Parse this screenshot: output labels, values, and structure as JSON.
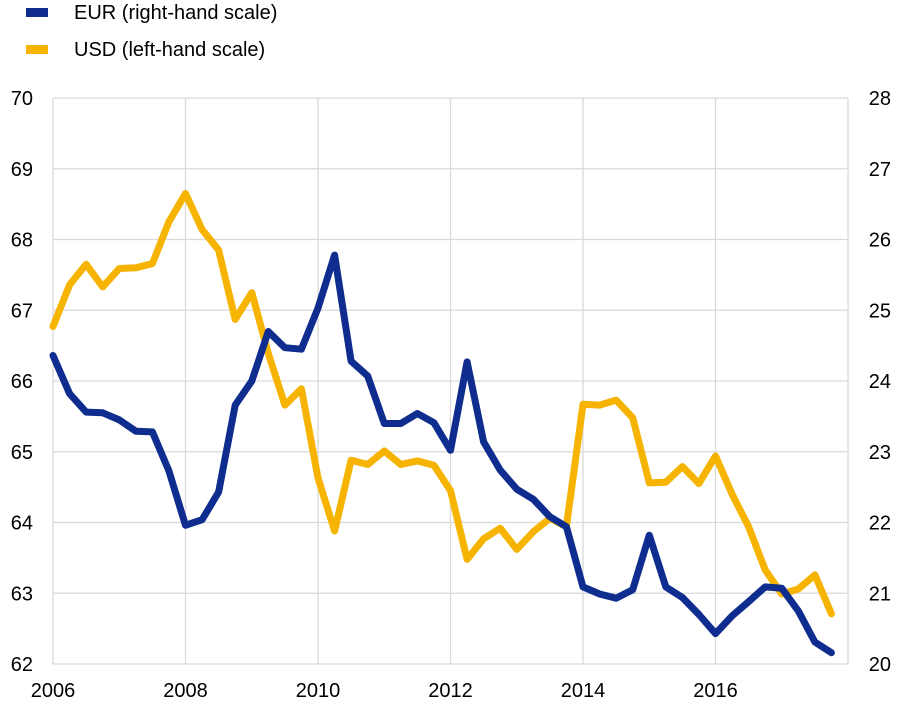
{
  "chart_data": {
    "type": "line",
    "title": "",
    "xlabel": "",
    "ylabel": "",
    "legend_position": "top-left",
    "grid": true,
    "x_range": [
      2006,
      2018
    ],
    "x_ticks": [
      "2006",
      "2008",
      "2010",
      "2012",
      "2014",
      "2016"
    ],
    "y_left": {
      "range": [
        62,
        70
      ],
      "ticks": [
        "62",
        "63",
        "64",
        "65",
        "66",
        "67",
        "68",
        "69",
        "70"
      ]
    },
    "y_right": {
      "range": [
        20,
        28
      ],
      "ticks": [
        "20",
        "21",
        "22",
        "23",
        "24",
        "25",
        "26",
        "27",
        "28"
      ]
    },
    "series": [
      {
        "name": "EUR (right-hand scale)",
        "axis": "right",
        "color": "#0e2d8e",
        "points": [
          [
            2006.0,
            24.36
          ],
          [
            2006.25,
            23.82
          ],
          [
            2006.5,
            23.56
          ],
          [
            2006.75,
            23.55
          ],
          [
            2007.0,
            23.45
          ],
          [
            2007.25,
            23.29
          ],
          [
            2007.5,
            23.28
          ],
          [
            2007.75,
            22.73
          ],
          [
            2008.0,
            21.96
          ],
          [
            2008.25,
            22.04
          ],
          [
            2008.5,
            22.43
          ],
          [
            2008.75,
            23.66
          ],
          [
            2009.0,
            24.0
          ],
          [
            2009.25,
            24.7
          ],
          [
            2009.5,
            24.47
          ],
          [
            2009.75,
            24.45
          ],
          [
            2010.0,
            25.03
          ],
          [
            2010.25,
            25.78
          ],
          [
            2010.5,
            24.28
          ],
          [
            2010.75,
            24.07
          ],
          [
            2011.0,
            23.4
          ],
          [
            2011.25,
            23.4
          ],
          [
            2011.5,
            23.54
          ],
          [
            2011.75,
            23.41
          ],
          [
            2012.0,
            23.02
          ],
          [
            2012.25,
            24.27
          ],
          [
            2012.5,
            23.14
          ],
          [
            2012.75,
            22.74
          ],
          [
            2013.0,
            22.47
          ],
          [
            2013.25,
            22.33
          ],
          [
            2013.5,
            22.08
          ],
          [
            2013.75,
            21.94
          ],
          [
            2014.0,
            21.09
          ],
          [
            2014.25,
            20.99
          ],
          [
            2014.5,
            20.93
          ],
          [
            2014.75,
            21.05
          ],
          [
            2015.0,
            21.82
          ],
          [
            2015.25,
            21.09
          ],
          [
            2015.5,
            20.94
          ],
          [
            2015.75,
            20.7
          ],
          [
            2016.0,
            20.43
          ],
          [
            2016.25,
            20.68
          ],
          [
            2016.5,
            20.88
          ],
          [
            2016.75,
            21.09
          ],
          [
            2017.0,
            21.07
          ],
          [
            2017.25,
            20.75
          ],
          [
            2017.5,
            20.31
          ],
          [
            2017.75,
            20.16
          ]
        ]
      },
      {
        "name": "USD (left-hand scale)",
        "axis": "left",
        "color": "#f6b400",
        "points": [
          [
            2006.0,
            66.77
          ],
          [
            2006.25,
            67.36
          ],
          [
            2006.5,
            67.65
          ],
          [
            2006.75,
            67.33
          ],
          [
            2007.0,
            67.59
          ],
          [
            2007.25,
            67.6
          ],
          [
            2007.5,
            67.66
          ],
          [
            2007.75,
            68.25
          ],
          [
            2008.0,
            68.65
          ],
          [
            2008.25,
            68.14
          ],
          [
            2008.5,
            67.85
          ],
          [
            2008.75,
            66.87
          ],
          [
            2009.0,
            67.25
          ],
          [
            2009.25,
            66.39
          ],
          [
            2009.5,
            65.66
          ],
          [
            2009.75,
            65.89
          ],
          [
            2010.0,
            64.63
          ],
          [
            2010.25,
            63.88
          ],
          [
            2010.5,
            64.88
          ],
          [
            2010.75,
            64.82
          ],
          [
            2011.0,
            65.01
          ],
          [
            2011.25,
            64.82
          ],
          [
            2011.5,
            64.87
          ],
          [
            2011.75,
            64.81
          ],
          [
            2012.0,
            64.45
          ],
          [
            2012.25,
            63.48
          ],
          [
            2012.5,
            63.77
          ],
          [
            2012.75,
            63.92
          ],
          [
            2013.0,
            63.62
          ],
          [
            2013.25,
            63.87
          ],
          [
            2013.5,
            64.06
          ],
          [
            2013.75,
            63.94
          ],
          [
            2014.0,
            65.67
          ],
          [
            2014.25,
            65.66
          ],
          [
            2014.5,
            65.73
          ],
          [
            2014.75,
            65.48
          ],
          [
            2015.0,
            64.56
          ],
          [
            2015.25,
            64.57
          ],
          [
            2015.5,
            64.79
          ],
          [
            2015.75,
            64.55
          ],
          [
            2016.0,
            64.94
          ],
          [
            2016.25,
            64.4
          ],
          [
            2016.5,
            63.94
          ],
          [
            2016.75,
            63.33
          ],
          [
            2017.0,
            62.99
          ],
          [
            2017.25,
            63.06
          ],
          [
            2017.5,
            63.26
          ],
          [
            2017.75,
            62.71
          ]
        ]
      }
    ]
  }
}
